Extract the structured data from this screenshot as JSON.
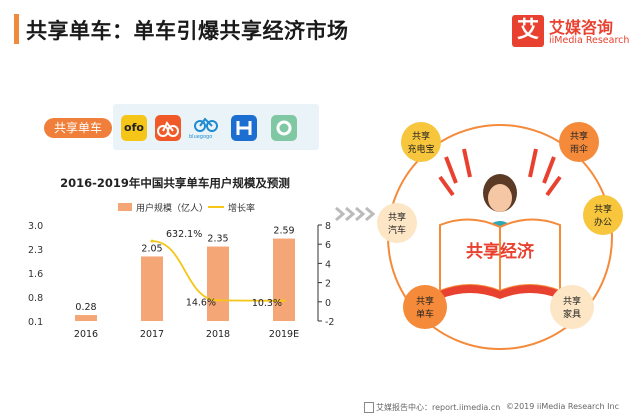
{
  "header": {
    "title": "共享单车：单车引爆共享经济市场"
  },
  "logo": {
    "mark": "艾",
    "name_cn": "艾媒咨询",
    "name_en": "iiMedia Research"
  },
  "category_tag": "共享单车",
  "apps": [
    {
      "name": "ofo",
      "text": "ofo",
      "color": "#f5c518"
    },
    {
      "name": "mobike",
      "text": "",
      "color": "#f05a28"
    },
    {
      "name": "bluegogo",
      "text": "bluegogo",
      "color": "#1e8ad2"
    },
    {
      "name": "hellobike",
      "text": "",
      "color": "#1c6fd1"
    },
    {
      "name": "youon",
      "text": "",
      "color": "#7fc8a3"
    }
  ],
  "chart_data": {
    "type": "bar",
    "title": "2016-2019年中国共享单车用户规模及预测",
    "categories": [
      "2016",
      "2017",
      "2018",
      "2019E"
    ],
    "series": [
      {
        "name": "用户规模（亿人）",
        "type": "bar",
        "axis": "left",
        "values": [
          0.28,
          2.05,
          2.35,
          2.59
        ],
        "labels": [
          "0.28",
          "2.05",
          "2.35",
          "2.59"
        ]
      },
      {
        "name": "增长率",
        "type": "line",
        "axis": "right",
        "values": [
          null,
          6.321,
          0.146,
          0.103
        ],
        "labels": [
          "",
          "632.1%",
          "14.6%",
          "10.3%"
        ]
      }
    ],
    "left_ticks": [
      "3.0",
      "2.3",
      "1.6",
      "0.8",
      "0.1"
    ],
    "ylim_left": [
      0.1,
      3.0
    ],
    "right_ticks": [
      "8",
      "6",
      "4",
      "2",
      "0",
      "-2"
    ],
    "ylim_right": [
      -2,
      8
    ],
    "colors": {
      "bar": "#f5a676",
      "line": "#f5c518"
    }
  },
  "diagram": {
    "center_label": "共享经济",
    "nodes": [
      {
        "line1": "共享",
        "line2": "充电宝",
        "color": "#f7c63c"
      },
      {
        "line1": "共享",
        "line2": "雨伞",
        "color": "#f48a3a"
      },
      {
        "line1": "共享",
        "line2": "汽车",
        "color": "#fde6c5"
      },
      {
        "line1": "共享",
        "line2": "办公",
        "color": "#f7c63c"
      },
      {
        "line1": "共享",
        "line2": "单车",
        "color": "#f48a3a"
      },
      {
        "line1": "共享",
        "line2": "家具",
        "color": "#fde6c5"
      }
    ]
  },
  "footer": {
    "left": "艾媒报告中心：report.iimedia.cn",
    "right": "©2019  iiMedia Research  Inc"
  }
}
